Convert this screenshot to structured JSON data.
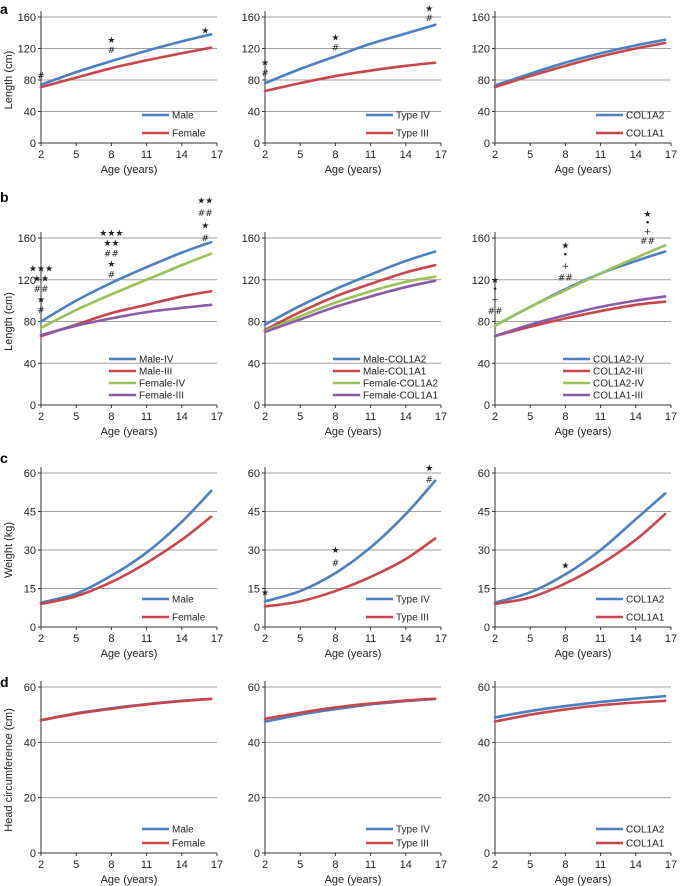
{
  "colors": {
    "blue": "#4a7fc1",
    "red": "#c9454a",
    "green": "#99c155",
    "purple": "#8a5aa8",
    "grid": "#a0a0a0",
    "axis": "#333333"
  },
  "chart_data": [
    {
      "panel": "a",
      "position": "row1-col1",
      "type": "line",
      "xlabel": "Age (years)",
      "ylabel": "Length (cm)",
      "xlim": [
        2,
        17
      ],
      "xticks": [
        2,
        5,
        8,
        11,
        14,
        17
      ],
      "ylim": [
        0,
        160
      ],
      "yticks": [
        0,
        40,
        80,
        120,
        160
      ],
      "legend": "bottom-right",
      "series": [
        {
          "name": "Male",
          "color": "blue",
          "x": [
            2,
            5,
            8,
            11,
            14,
            16.5
          ],
          "values": [
            74,
            90,
            104,
            117,
            129,
            138
          ]
        },
        {
          "name": "Female",
          "color": "red",
          "x": [
            2,
            5,
            8,
            11,
            14,
            16.5
          ],
          "values": [
            71,
            83,
            95,
            105,
            114,
            121
          ]
        }
      ],
      "annotations": [
        {
          "x": 2,
          "text": "#",
          "y": 86
        },
        {
          "x": 8,
          "text": "★",
          "y": 131
        },
        {
          "x": 8,
          "text": "#",
          "y": 118
        },
        {
          "x": 16,
          "text": "★",
          "y": 143
        }
      ]
    },
    {
      "panel": "",
      "position": "row1-col2",
      "type": "line",
      "xlabel": "Age (years)",
      "ylabel": "",
      "xlim": [
        2,
        17
      ],
      "xticks": [
        2,
        5,
        8,
        11,
        14,
        17
      ],
      "ylim": [
        0,
        160
      ],
      "yticks": [
        0,
        40,
        80,
        120,
        160
      ],
      "legend": "bottom-right",
      "series": [
        {
          "name": "Type IV",
          "color": "blue",
          "x": [
            2,
            5,
            8,
            11,
            14,
            16.5
          ],
          "values": [
            76,
            94,
            110,
            126,
            139,
            150
          ]
        },
        {
          "name": "Type III",
          "color": "red",
          "x": [
            2,
            5,
            8,
            11,
            14,
            16.5
          ],
          "values": [
            66,
            76,
            85,
            92,
            98,
            102
          ]
        }
      ],
      "annotations": [
        {
          "x": 2,
          "text": "★",
          "y": 102
        },
        {
          "x": 2,
          "text": "#",
          "y": 89
        },
        {
          "x": 8,
          "text": "★",
          "y": 134
        },
        {
          "x": 8,
          "text": "#",
          "y": 121
        },
        {
          "x": 16,
          "text": "★",
          "y": 171
        },
        {
          "x": 16,
          "text": "#",
          "y": 159
        }
      ]
    },
    {
      "panel": "",
      "position": "row1-col3",
      "type": "line",
      "xlabel": "Age (years)",
      "ylabel": "",
      "xlim": [
        2,
        17
      ],
      "xticks": [
        2,
        5,
        8,
        11,
        14,
        17
      ],
      "ylim": [
        0,
        160
      ],
      "yticks": [
        0,
        40,
        80,
        120,
        160
      ],
      "legend": "bottom-right",
      "series": [
        {
          "name": "COL1A2",
          "color": "blue",
          "x": [
            2,
            5,
            8,
            11,
            14,
            16.5
          ],
          "values": [
            73,
            88,
            102,
            114,
            124,
            131
          ]
        },
        {
          "name": "COL1A1",
          "color": "red",
          "x": [
            2,
            5,
            8,
            11,
            14,
            16.5
          ],
          "values": [
            71,
            85,
            98,
            110,
            120,
            127
          ]
        }
      ],
      "annotations": []
    },
    {
      "panel": "b",
      "position": "row2-col1",
      "type": "line",
      "xlabel": "Age (years)",
      "ylabel": "Length (cm)",
      "xlim": [
        2,
        17
      ],
      "xticks": [
        2,
        5,
        8,
        11,
        14,
        17
      ],
      "ylim": [
        0,
        160
      ],
      "yticks": [
        0,
        40,
        80,
        120,
        160
      ],
      "legend": "bottom-right",
      "series": [
        {
          "name": "Male-IV",
          "color": "blue",
          "x": [
            2,
            5,
            8,
            11,
            14,
            16.5
          ],
          "values": [
            80,
            100,
            117,
            132,
            146,
            156
          ]
        },
        {
          "name": "Male-III",
          "color": "red",
          "x": [
            2,
            5,
            8,
            11,
            14,
            16.5
          ],
          "values": [
            66,
            77,
            88,
            96,
            104,
            109
          ]
        },
        {
          "name": "Female-IV",
          "color": "green",
          "x": [
            2,
            5,
            8,
            11,
            14,
            16.5
          ],
          "values": [
            74,
            91,
            106,
            120,
            134,
            145
          ]
        },
        {
          "name": "Female-III",
          "color": "purple",
          "x": [
            2,
            5,
            8,
            11,
            14,
            16.5
          ],
          "values": [
            67,
            76,
            83,
            89,
            93,
            96
          ]
        }
      ],
      "annotations": [
        {
          "x": 2,
          "text": "★★★",
          "y": 131
        },
        {
          "x": 2,
          "text": "★★",
          "y": 121
        },
        {
          "x": 2,
          "text": "##",
          "y": 111
        },
        {
          "x": 2,
          "text": "★",
          "y": 101
        },
        {
          "x": 2,
          "text": "#",
          "y": 91
        },
        {
          "x": 8,
          "text": "★★★",
          "y": 165
        },
        {
          "x": 8,
          "text": "★★",
          "y": 155
        },
        {
          "x": 8,
          "text": "##",
          "y": 145
        },
        {
          "x": 8,
          "text": "★",
          "y": 135
        },
        {
          "x": 8,
          "text": "#",
          "y": 125
        },
        {
          "x": 16,
          "text": "★★",
          "y": 196
        },
        {
          "x": 16,
          "text": "##",
          "y": 184
        },
        {
          "x": 16,
          "text": "★",
          "y": 172
        },
        {
          "x": 16,
          "text": "#",
          "y": 160
        }
      ]
    },
    {
      "panel": "",
      "position": "row2-col2",
      "type": "line",
      "xlabel": "Age (years)",
      "ylabel": "",
      "xlim": [
        2,
        17
      ],
      "xticks": [
        2,
        5,
        8,
        11,
        14,
        17
      ],
      "ylim": [
        0,
        160
      ],
      "yticks": [
        0,
        40,
        80,
        120,
        160
      ],
      "legend": "bottom-right",
      "series": [
        {
          "name": "Male-COL1A2",
          "color": "blue",
          "x": [
            2,
            5,
            8,
            11,
            14,
            16.5
          ],
          "values": [
            77,
            95,
            111,
            125,
            138,
            147
          ]
        },
        {
          "name": "Male-COL1A1",
          "color": "red",
          "x": [
            2,
            5,
            8,
            11,
            14,
            16.5
          ],
          "values": [
            72,
            89,
            104,
            116,
            127,
            134
          ]
        },
        {
          "name": "Female-COL1A2",
          "color": "green",
          "x": [
            2,
            5,
            8,
            11,
            14,
            16.5
          ],
          "values": [
            71,
            85,
            98,
            109,
            118,
            123
          ]
        },
        {
          "name": "Female-COL1A1",
          "color": "purple",
          "x": [
            2,
            5,
            8,
            11,
            14,
            16.5
          ],
          "values": [
            70,
            82,
            94,
            104,
            113,
            119
          ]
        }
      ],
      "annotations": []
    },
    {
      "panel": "",
      "position": "row2-col3",
      "type": "line",
      "xlabel": "Age (years)",
      "ylabel": "",
      "xlim": [
        2,
        17
      ],
      "xticks": [
        2,
        5,
        8,
        11,
        14,
        17
      ],
      "ylim": [
        0,
        160
      ],
      "yticks": [
        0,
        40,
        80,
        120,
        160
      ],
      "legend": "bottom-right",
      "series": [
        {
          "name": "COL1A2-IV",
          "color": "blue",
          "x": [
            2,
            5,
            8,
            11,
            14,
            16.5
          ],
          "values": [
            76,
            94,
            111,
            126,
            138,
            147
          ]
        },
        {
          "name": "COL1A2-III",
          "color": "red",
          "x": [
            2,
            5,
            8,
            11,
            14,
            16.5
          ],
          "values": [
            66,
            75,
            83,
            90,
            96,
            99
          ]
        },
        {
          "name": "COL1A2-IV",
          "color": "green",
          "x": [
            2,
            5,
            8,
            11,
            14,
            16.5
          ],
          "values": [
            76,
            94,
            110,
            126,
            141,
            153
          ]
        },
        {
          "name": "COL1A1-III",
          "color": "purple",
          "x": [
            2,
            5,
            8,
            11,
            14,
            16.5
          ],
          "values": [
            66,
            77,
            86,
            94,
            100,
            104
          ]
        }
      ],
      "annotations": [
        {
          "x": 2,
          "text": "★",
          "y": 120
        },
        {
          "x": 2,
          "text": "•",
          "y": 111
        },
        {
          "x": 2,
          "text": "+",
          "y": 101
        },
        {
          "x": 2,
          "text": "##",
          "y": 90
        },
        {
          "x": 8,
          "text": "★",
          "y": 153
        },
        {
          "x": 8,
          "text": "•",
          "y": 144
        },
        {
          "x": 8,
          "text": "+",
          "y": 133
        },
        {
          "x": 8,
          "text": "##",
          "y": 122
        },
        {
          "x": 15,
          "text": "★",
          "y": 183
        },
        {
          "x": 15,
          "text": "•",
          "y": 175
        },
        {
          "x": 15,
          "text": "+",
          "y": 166
        },
        {
          "x": 15,
          "text": "##",
          "y": 157
        }
      ]
    },
    {
      "panel": "c",
      "position": "row3-col1",
      "type": "line",
      "xlabel": "Age (years)",
      "ylabel": "Weight (kg)",
      "xlim": [
        2,
        17
      ],
      "xticks": [
        2,
        5,
        8,
        11,
        14,
        17
      ],
      "ylim": [
        0,
        60
      ],
      "yticks": [
        0,
        15,
        30,
        45,
        60
      ],
      "legend": "bottom-right",
      "series": [
        {
          "name": "Male",
          "color": "blue",
          "x": [
            2,
            5,
            8,
            11,
            14,
            16.5
          ],
          "values": [
            9.5,
            13,
            20,
            29,
            41,
            53
          ]
        },
        {
          "name": "Female",
          "color": "red",
          "x": [
            2,
            5,
            8,
            11,
            14,
            16.5
          ],
          "values": [
            9,
            12,
            17.5,
            25,
            34,
            43
          ]
        }
      ],
      "annotations": []
    },
    {
      "panel": "",
      "position": "row3-col2",
      "type": "line",
      "xlabel": "Age (years)",
      "ylabel": "",
      "xlim": [
        2,
        17
      ],
      "xticks": [
        2,
        5,
        8,
        11,
        14,
        17
      ],
      "ylim": [
        0,
        60
      ],
      "yticks": [
        0,
        15,
        30,
        45,
        60
      ],
      "legend": "bottom-right",
      "series": [
        {
          "name": "Type IV",
          "color": "blue",
          "x": [
            2,
            5,
            8,
            11,
            14,
            16.5
          ],
          "values": [
            10,
            14,
            21,
            31,
            44,
            57
          ]
        },
        {
          "name": "Type III",
          "color": "red",
          "x": [
            2,
            5,
            8,
            11,
            14,
            16.5
          ],
          "values": [
            8,
            10,
            14,
            19.5,
            26.5,
            34.5
          ]
        }
      ],
      "annotations": [
        {
          "x": 2,
          "text": "★",
          "y": 13.5
        },
        {
          "x": 8,
          "text": "★",
          "y": 30
        },
        {
          "x": 8,
          "text": "#",
          "y": 25
        },
        {
          "x": 16,
          "text": "★",
          "y": 62
        },
        {
          "x": 16,
          "text": "#",
          "y": 57.5
        }
      ]
    },
    {
      "panel": "",
      "position": "row3-col3",
      "type": "line",
      "xlabel": "Age (years)",
      "ylabel": "",
      "xlim": [
        2,
        17
      ],
      "xticks": [
        2,
        5,
        8,
        11,
        14,
        17
      ],
      "ylim": [
        0,
        60
      ],
      "yticks": [
        0,
        15,
        30,
        45,
        60
      ],
      "legend": "bottom-right",
      "series": [
        {
          "name": "COL1A2",
          "color": "blue",
          "x": [
            2,
            5,
            8,
            11,
            14,
            16.5
          ],
          "values": [
            9.5,
            13.5,
            20.5,
            30,
            42,
            52
          ]
        },
        {
          "name": "COL1A1",
          "color": "red",
          "x": [
            2,
            5,
            8,
            11,
            14,
            16.5
          ],
          "values": [
            9,
            11.5,
            17,
            24.5,
            34,
            44
          ]
        }
      ],
      "annotations": [
        {
          "x": 8,
          "text": "★",
          "y": 24
        }
      ]
    },
    {
      "panel": "d",
      "position": "row4-col1",
      "type": "line",
      "xlabel": "Age (years)",
      "ylabel": "Head circumference (cm)",
      "xlim": [
        2,
        17
      ],
      "xticks": [
        2,
        5,
        8,
        11,
        14,
        17
      ],
      "ylim": [
        0,
        60
      ],
      "yticks": [
        0,
        20,
        40,
        60
      ],
      "legend": "bottom-right",
      "series": [
        {
          "name": "Male",
          "color": "blue",
          "x": [
            2,
            5,
            8,
            11,
            14,
            16.5
          ],
          "values": [
            48,
            50.5,
            52.3,
            53.8,
            55,
            55.7
          ]
        },
        {
          "name": "Female",
          "color": "red",
          "x": [
            2,
            5,
            8,
            11,
            14,
            16.5
          ],
          "values": [
            48,
            50.3,
            52.1,
            53.7,
            54.9,
            55.7
          ]
        }
      ],
      "annotations": []
    },
    {
      "panel": "",
      "position": "row4-col2",
      "type": "line",
      "xlabel": "Age (years)",
      "ylabel": "",
      "xlim": [
        2,
        17
      ],
      "xticks": [
        2,
        5,
        8,
        11,
        14,
        17
      ],
      "ylim": [
        0,
        60
      ],
      "yticks": [
        0,
        20,
        40,
        60
      ],
      "legend": "bottom-right",
      "series": [
        {
          "name": "Type IV",
          "color": "blue",
          "x": [
            2,
            5,
            8,
            11,
            14,
            16.5
          ],
          "values": [
            47.5,
            50,
            52,
            53.7,
            54.9,
            55.7
          ]
        },
        {
          "name": "Type III",
          "color": "red",
          "x": [
            2,
            5,
            8,
            11,
            14,
            16.5
          ],
          "values": [
            48.5,
            50.7,
            52.6,
            54,
            55.1,
            55.8
          ]
        }
      ],
      "annotations": []
    },
    {
      "panel": "",
      "position": "row4-col3",
      "type": "line",
      "xlabel": "Age (years)",
      "ylabel": "",
      "xlim": [
        2,
        17
      ],
      "xticks": [
        2,
        5,
        8,
        11,
        14,
        17
      ],
      "ylim": [
        0,
        60
      ],
      "yticks": [
        0,
        20,
        40,
        60
      ],
      "legend": "bottom-right",
      "series": [
        {
          "name": "COL1A2",
          "color": "blue",
          "x": [
            2,
            5,
            8,
            11,
            14,
            16.5
          ],
          "values": [
            49,
            51.3,
            53.1,
            54.6,
            55.8,
            56.7
          ]
        },
        {
          "name": "COL1A1",
          "color": "red",
          "x": [
            2,
            5,
            8,
            11,
            14,
            16.5
          ],
          "values": [
            47.5,
            50,
            51.9,
            53.4,
            54.4,
            55
          ]
        }
      ],
      "annotations": []
    }
  ]
}
